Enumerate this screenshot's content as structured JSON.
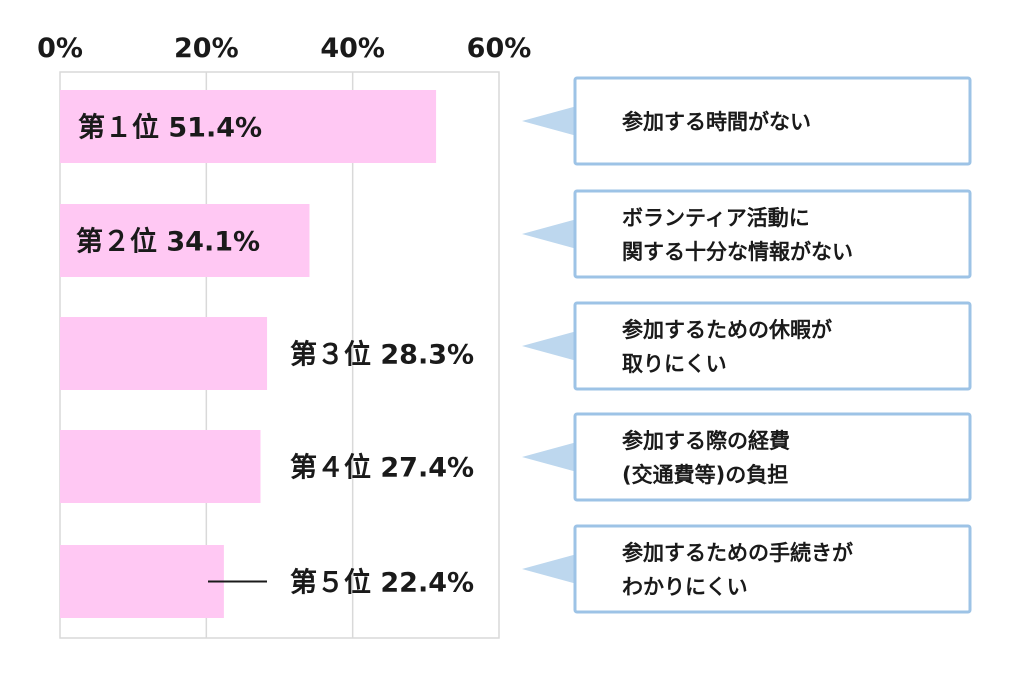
{
  "chart_data": {
    "type": "bar",
    "orientation": "horizontal",
    "xlim": [
      0,
      60
    ],
    "tick_values": [
      0,
      20,
      40,
      60
    ],
    "tick_labels": [
      "0%",
      "20%",
      "40%",
      "60%"
    ],
    "grid": true,
    "bar_color": "#ffc8f3",
    "grid_color": "#d9d9d9",
    "callout_border_color": "#9dc3e6",
    "callout_pointer_color": "#bdd7ee",
    "categories": [
      "参加する時間がない",
      "ボランティア活動に\n関する十分な情報がない",
      "参加するための休暇が\n取りにくい",
      "参加する際の経費\n(交通費等)の負担",
      "参加するための手続きが\nわかりにくい"
    ],
    "values": [
      51.4,
      34.1,
      28.3,
      27.4,
      22.4
    ],
    "rank_labels": [
      "第１位 51.4%",
      "第２位 34.1%",
      "第３位 28.3%",
      "第４位 27.4%",
      "第５位 22.4%"
    ],
    "annotation": "5th bar has a leader line from the bar end to its rank label"
  }
}
